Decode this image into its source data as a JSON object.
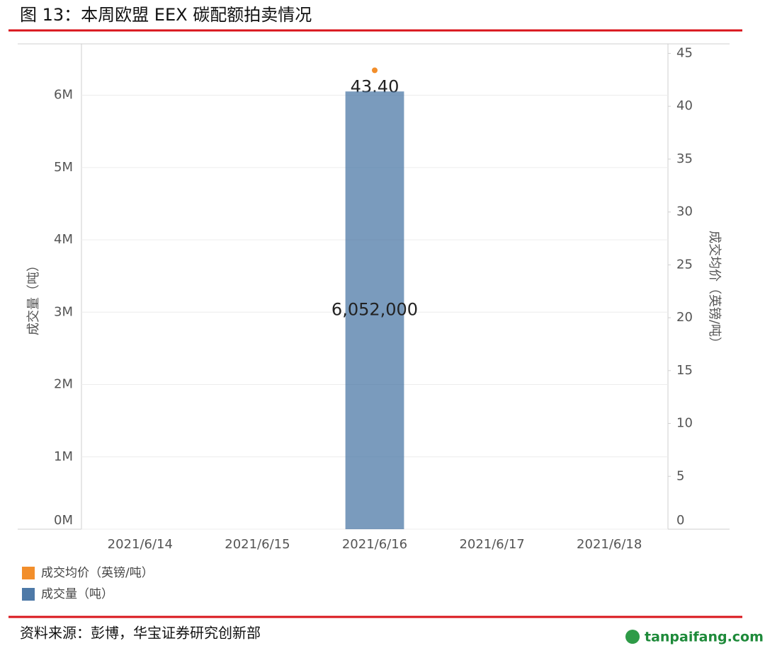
{
  "chart_data": {
    "type": "combo",
    "title": "图 13：本周欧盟 EEX 碳配额拍卖情况",
    "source": "资料来源：彭博，华宝证券研究创新部",
    "watermark": "tanpaifang.com",
    "y_label": "成交量（吨）",
    "y2_label": "成交均价（英镑/吨）",
    "categories": [
      "2021/6/14",
      "2021/6/15",
      "2021/6/16",
      "2021/6/17",
      "2021/6/18"
    ],
    "series": [
      {
        "name": "成交均价（英镑/吨）",
        "type": "scatter",
        "axis": "y2",
        "color": "#f28e2b",
        "values": [
          null,
          null,
          43.4,
          null,
          null
        ],
        "value_labels": [
          null,
          null,
          "43.40",
          null,
          null
        ]
      },
      {
        "name": "成交量（吨）",
        "type": "bar",
        "color": "#4e79a7",
        "values": [
          null,
          null,
          6052000,
          null,
          null
        ],
        "value_labels": [
          null,
          null,
          "6,052,000",
          null,
          null
        ]
      }
    ],
    "ylim": [
      0,
      6710000
    ],
    "yticks": [
      {
        "value": 0,
        "label": "0M"
      },
      {
        "value": 1000000,
        "label": "1M"
      },
      {
        "value": 2000000,
        "label": "2M"
      },
      {
        "value": 3000000,
        "label": "3M"
      },
      {
        "value": 4000000,
        "label": "4M"
      },
      {
        "value": 5000000,
        "label": "5M"
      },
      {
        "value": 6000000,
        "label": "6M"
      }
    ],
    "y2lim": [
      0,
      45.9
    ],
    "y2ticks": [
      0,
      5,
      10,
      15,
      20,
      25,
      30,
      35,
      40,
      45
    ],
    "grid": true
  }
}
